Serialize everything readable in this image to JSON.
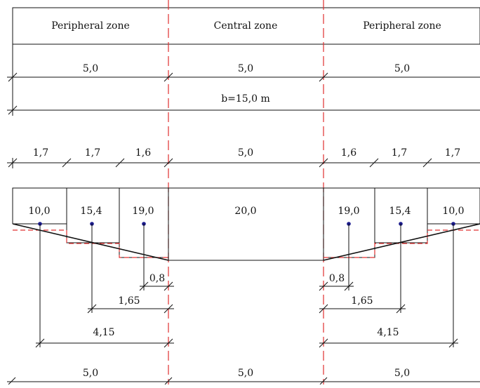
{
  "header": {
    "zone_left": "Peripheral zone",
    "zone_center": "Central zone",
    "zone_right": "Peripheral zone"
  },
  "zone_widths": {
    "left": "5,0",
    "center": "5,0",
    "right": "5,0"
  },
  "total_width": "b=15,0 m",
  "strip_widths": {
    "left": [
      "1,7",
      "1,7",
      "1,6"
    ],
    "center": "5,0",
    "right": [
      "1,6",
      "1,7",
      "1,7"
    ]
  },
  "values": {
    "left": [
      "10,0",
      "15,4",
      "19,0"
    ],
    "center": "20,0",
    "right": [
      "19,0",
      "15,4",
      "10,0"
    ]
  },
  "offsets": {
    "left": [
      "0,8",
      "1,65",
      "4,15"
    ],
    "right": [
      "0,8",
      "1,65",
      "4,15"
    ]
  },
  "bottom_widths": {
    "left": "5,0",
    "center": "5,0",
    "right": "5,0"
  },
  "colors": {
    "axis": "#e03030",
    "point": "#1a1a8c",
    "line": "#111111"
  }
}
